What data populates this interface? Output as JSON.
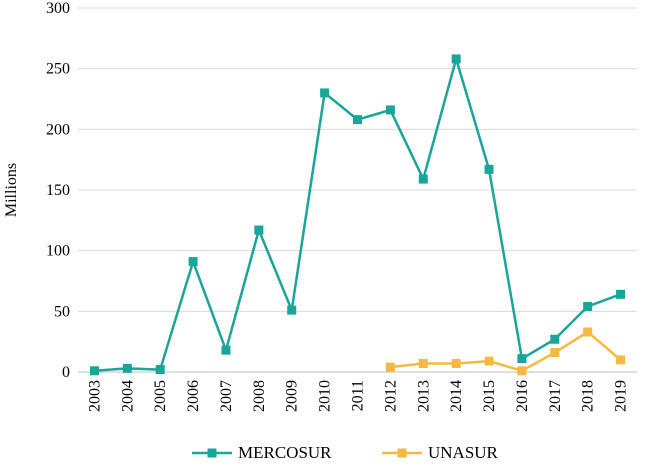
{
  "chart_data": {
    "type": "line",
    "ylabel": "Millions",
    "xlabel": "",
    "ylim": [
      0,
      300
    ],
    "yticks": [
      0,
      50,
      100,
      150,
      200,
      250,
      300
    ],
    "grid": "horizontal",
    "legend_position": "bottom",
    "x": [
      "2003",
      "2004",
      "2005",
      "2006",
      "2007",
      "2008",
      "2009",
      "2010",
      "2011",
      "2012",
      "2013",
      "2014",
      "2015",
      "2016",
      "2017",
      "2018",
      "2019"
    ],
    "series": [
      {
        "name": "MERCOSUR",
        "color": "#1aa59a",
        "values": [
          1,
          3,
          2,
          91,
          18,
          117,
          51,
          230,
          208,
          216,
          159,
          258,
          167,
          11,
          27,
          54,
          64
        ]
      },
      {
        "name": "UNASUR",
        "color": "#f5b942",
        "values": [
          null,
          null,
          null,
          null,
          null,
          null,
          null,
          null,
          null,
          4,
          7,
          7,
          9,
          1,
          16,
          33,
          10
        ]
      }
    ]
  }
}
